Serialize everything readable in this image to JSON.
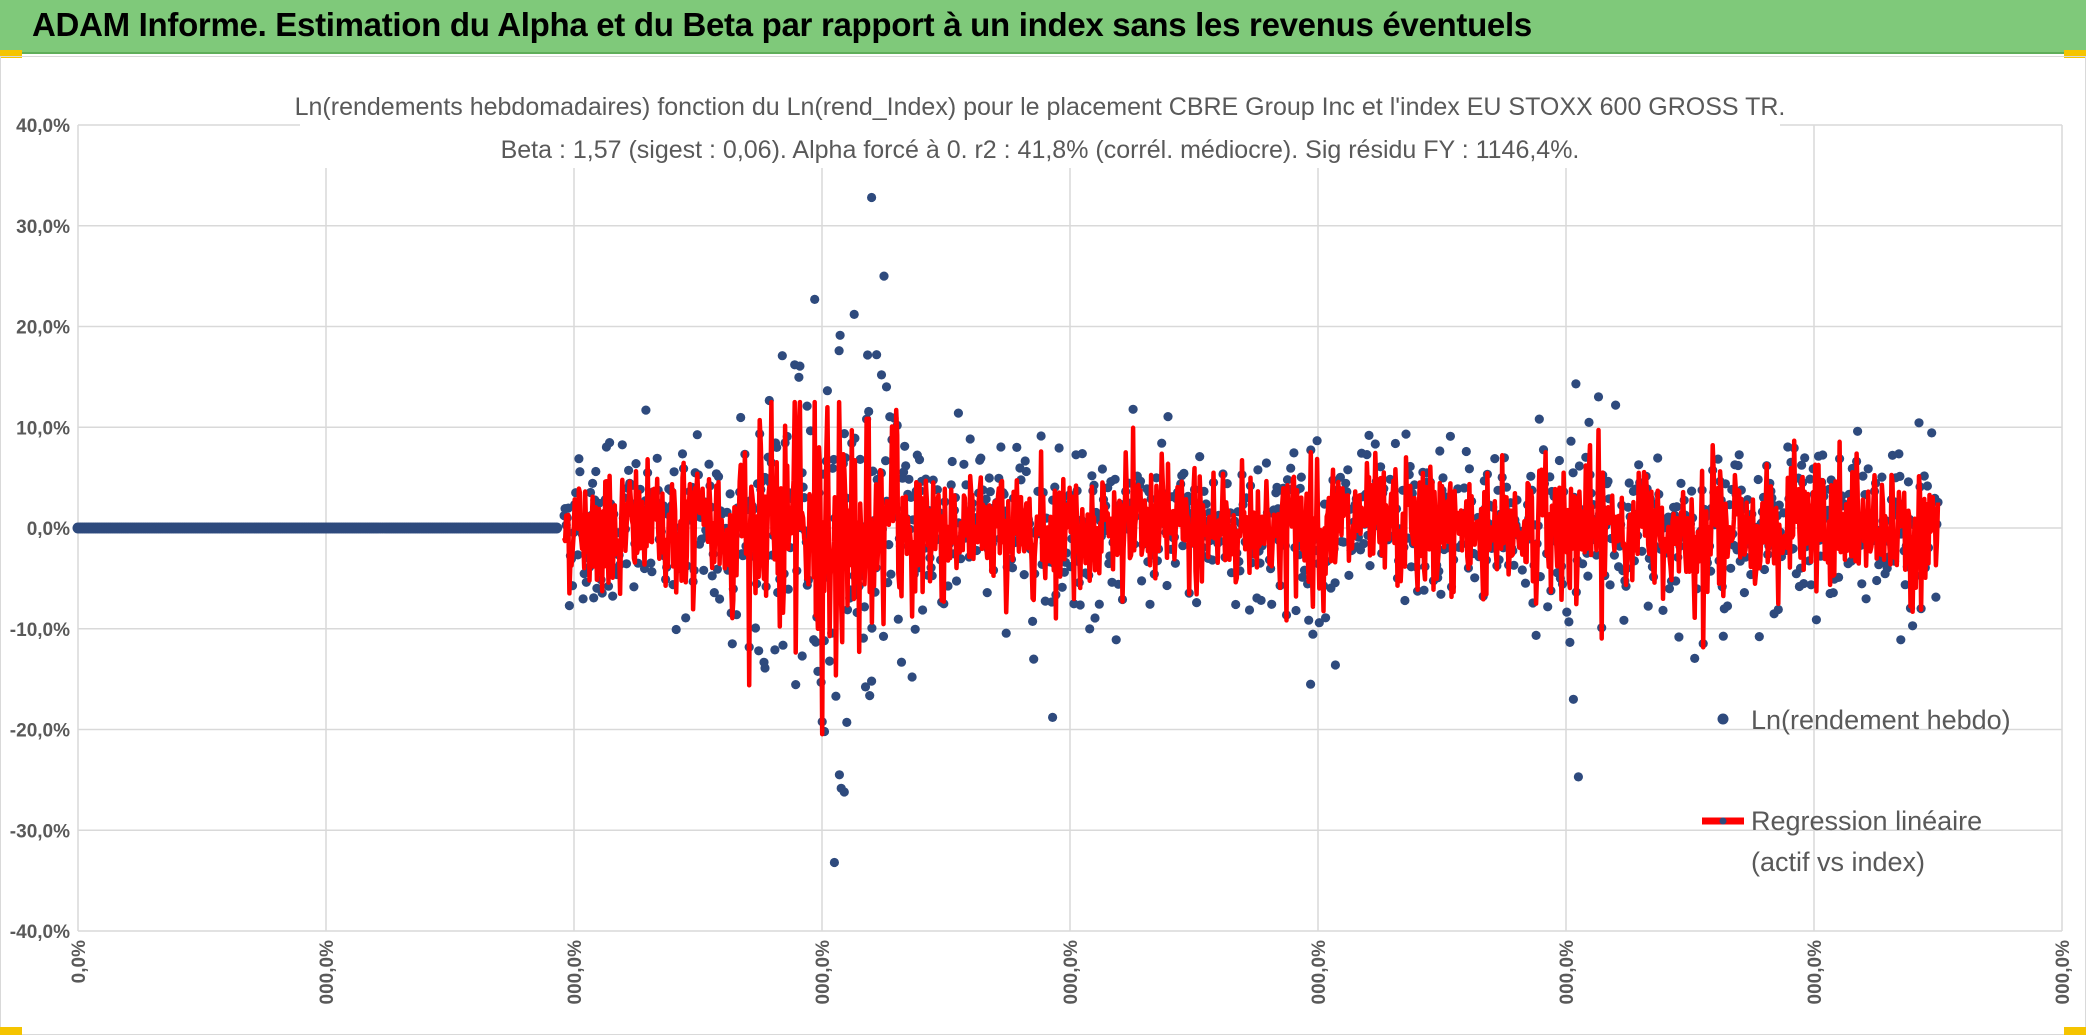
{
  "header": {
    "title": "ADAM Informe. Estimation du Alpha et du Beta par rapport à un index sans les revenus éventuels"
  },
  "colors": {
    "banner": "#7fc97a",
    "accent": "#f5c400",
    "points": "#2e4a7d",
    "regression": "#ff0000",
    "grid": "#d9d9d9"
  },
  "chart_data": {
    "type": "scatter",
    "title": "Ln(rendements hebdomadaires) fonction du Ln(rend_Index) pour le placement CBRE Group Inc et l'index EU STOXX 600 GROSS TR.",
    "subtitle": "Beta : 1,57 (sigest : 0,06). Alpha forcé à 0. r2 : 41,8% (corrél. médiocre). Sig résidu FY : 1146,4%.",
    "xlabel": "",
    "ylabel": "",
    "ylim": [
      -0.4,
      0.4
    ],
    "yticks": [
      {
        "value": 0.4,
        "label": "40,0%"
      },
      {
        "value": 0.3,
        "label": "30,0%"
      },
      {
        "value": 0.2,
        "label": "20,0%"
      },
      {
        "value": 0.1,
        "label": "10,0%"
      },
      {
        "value": 0.0,
        "label": "0,0%"
      },
      {
        "value": -0.1,
        "label": "-10,0%"
      },
      {
        "value": -0.2,
        "label": "-20,0%"
      },
      {
        "value": -0.3,
        "label": "-30,0%"
      },
      {
        "value": -0.4,
        "label": "-40,0%"
      }
    ],
    "xlim": [
      0,
      8
    ],
    "xticks": [
      {
        "value": 0,
        "label": "0,0%"
      },
      {
        "value": 1,
        "label": "000,0%"
      },
      {
        "value": 2,
        "label": "000,0%"
      },
      {
        "value": 3,
        "label": "000,0%"
      },
      {
        "value": 4,
        "label": "000,0%"
      },
      {
        "value": 5,
        "label": "000,0%"
      },
      {
        "value": 6,
        "label": "000,0%"
      },
      {
        "value": 7,
        "label": "000,0%"
      },
      {
        "value": 8,
        "label": "000,0%"
      }
    ],
    "grid": true,
    "legend_position": "right",
    "series": [
      {
        "name": "Ln(rendement hebdo)",
        "kind": "points",
        "flat_range": [
          0.0,
          1.93
        ],
        "active_range": [
          1.96,
          7.5
        ],
        "approx_sd": 0.042,
        "outliers": [
          {
            "x": 3.2,
            "y": 0.328
          },
          {
            "x": 3.25,
            "y": 0.25
          },
          {
            "x": 3.13,
            "y": 0.212
          },
          {
            "x": 3.22,
            "y": 0.172
          },
          {
            "x": 3.24,
            "y": 0.152
          },
          {
            "x": 3.26,
            "y": 0.14
          },
          {
            "x": 2.84,
            "y": 0.171
          },
          {
            "x": 2.94,
            "y": 0.121
          },
          {
            "x": 6.04,
            "y": 0.143
          },
          {
            "x": 6.2,
            "y": 0.122
          },
          {
            "x": 2.29,
            "y": 0.117
          },
          {
            "x": 3.55,
            "y": 0.114
          },
          {
            "x": 3.05,
            "y": -0.332
          },
          {
            "x": 6.05,
            "y": -0.247
          },
          {
            "x": 3.07,
            "y": -0.245
          },
          {
            "x": 3.09,
            "y": -0.262
          },
          {
            "x": 3.01,
            "y": -0.202
          },
          {
            "x": 3.1,
            "y": -0.193
          },
          {
            "x": 3.93,
            "y": -0.188
          },
          {
            "x": 6.03,
            "y": -0.17
          },
          {
            "x": 4.97,
            "y": -0.155
          },
          {
            "x": 3.2,
            "y": -0.152
          },
          {
            "x": 2.92,
            "y": -0.127
          },
          {
            "x": 2.81,
            "y": -0.121
          },
          {
            "x": 2.77,
            "y": -0.139
          },
          {
            "x": 5.07,
            "y": -0.136
          },
          {
            "x": 7.35,
            "y": -0.111
          }
        ]
      },
      {
        "name": "Regression linéaire\n(actif vs index)",
        "legend_lines": [
          "Regression linéaire",
          "(actif vs index)"
        ],
        "kind": "line",
        "beta": 1.57,
        "active_range": [
          1.96,
          7.5
        ]
      }
    ]
  }
}
